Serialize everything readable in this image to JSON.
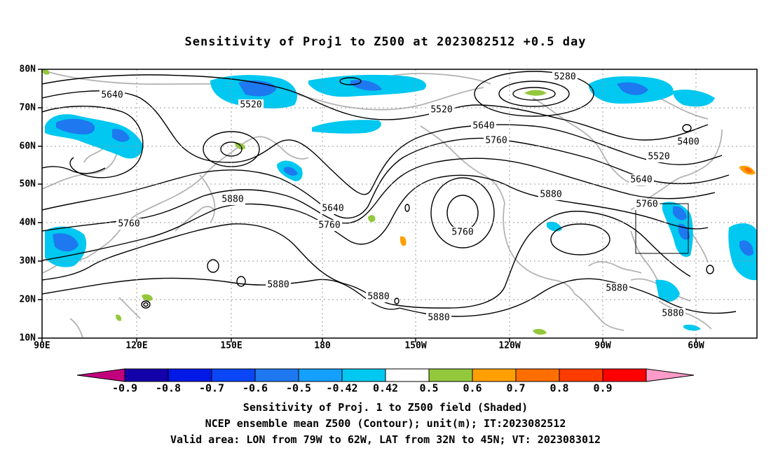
{
  "title": "Sensitivity of Proj1 to Z500 at 2023082512 +0.5 day",
  "map": {
    "lat_labels": [
      "80N",
      "70N",
      "60N",
      "50N",
      "40N",
      "30N",
      "20N",
      "10N"
    ],
    "lon_labels": [
      "90E",
      "120E",
      "150E",
      "180",
      "150W",
      "120W",
      "90W",
      "60W"
    ],
    "contour_labels": [
      "5280",
      "5520",
      "5520",
      "5520",
      "5640",
      "5640",
      "5640",
      "5640",
      "5760",
      "5760",
      "5760",
      "5760",
      "5760",
      "5880",
      "5880",
      "5880",
      "5880",
      "5880",
      "5880",
      "5880",
      "5400"
    ],
    "valid_area_box": {
      "lon_min": "79W",
      "lon_max": "62W",
      "lat_min": "32N",
      "lat_max": "45N"
    }
  },
  "colorbar": {
    "labels": [
      "-0.9",
      "-0.8",
      "-0.7",
      "-0.6",
      "-0.5",
      "-0.42",
      "0.42",
      "0.5",
      "0.6",
      "0.7",
      "0.8",
      "0.9"
    ],
    "colors": [
      "#c2007e",
      "#1400aa",
      "#0019e6",
      "#0a46f5",
      "#1e78f0",
      "#14a0ff",
      "#00c8f0",
      "#ffffff",
      "#94c83c",
      "#ffa000",
      "#ff6e00",
      "#ff3c00",
      "#ff0000",
      "#ff9bc8"
    ]
  },
  "footer": {
    "line1": "Sensitivity of Proj. 1 to Z500 field (Shaded)",
    "line2": "NCEP ensemble mean Z500 (Contour); unit(m); IT:2023082512",
    "line3": "Valid area: LON from 79W to 62W, LAT from 32N to 45N; VT: 2023083012"
  }
}
